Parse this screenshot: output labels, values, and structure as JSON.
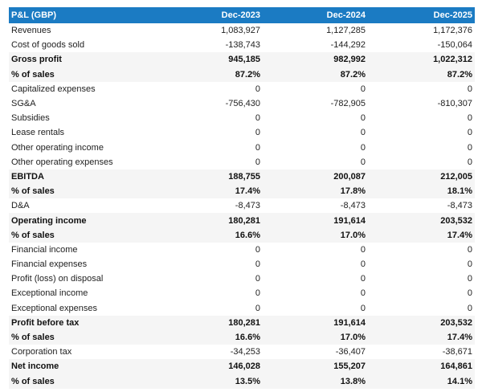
{
  "header": {
    "title": "P&L (GBP)",
    "columns": [
      "Dec-2023",
      "Dec-2024",
      "Dec-2025"
    ]
  },
  "colors": {
    "header_bg": "#1b7bc3",
    "highlight_row_bg": "#f5f5f5"
  },
  "rows": [
    {
      "label": "Revenues",
      "values": [
        "1,083,927",
        "1,127,285",
        "1,172,376"
      ],
      "bold": false
    },
    {
      "label": "Cost of goods sold",
      "values": [
        "-138,743",
        "-144,292",
        "-150,064"
      ],
      "bold": false
    },
    {
      "label": "Gross profit",
      "values": [
        "945,185",
        "982,992",
        "1,022,312"
      ],
      "bold": true
    },
    {
      "label": "% of sales",
      "values": [
        "87.2%",
        "87.2%",
        "87.2%"
      ],
      "bold": true
    },
    {
      "label": "Capitalized expenses",
      "values": [
        "0",
        "0",
        "0"
      ],
      "bold": false
    },
    {
      "label": "SG&A",
      "values": [
        "-756,430",
        "-782,905",
        "-810,307"
      ],
      "bold": false
    },
    {
      "label": "Subsidies",
      "values": [
        "0",
        "0",
        "0"
      ],
      "bold": false
    },
    {
      "label": "Lease rentals",
      "values": [
        "0",
        "0",
        "0"
      ],
      "bold": false
    },
    {
      "label": "Other operating income",
      "values": [
        "0",
        "0",
        "0"
      ],
      "bold": false
    },
    {
      "label": "Other operating expenses",
      "values": [
        "0",
        "0",
        "0"
      ],
      "bold": false
    },
    {
      "label": "EBITDA",
      "values": [
        "188,755",
        "200,087",
        "212,005"
      ],
      "bold": true
    },
    {
      "label": "% of sales",
      "values": [
        "17.4%",
        "17.8%",
        "18.1%"
      ],
      "bold": true
    },
    {
      "label": "D&A",
      "values": [
        "-8,473",
        "-8,473",
        "-8,473"
      ],
      "bold": false
    },
    {
      "label": "Operating income",
      "values": [
        "180,281",
        "191,614",
        "203,532"
      ],
      "bold": true
    },
    {
      "label": "% of sales",
      "values": [
        "16.6%",
        "17.0%",
        "17.4%"
      ],
      "bold": true
    },
    {
      "label": "Financial income",
      "values": [
        "0",
        "0",
        "0"
      ],
      "bold": false
    },
    {
      "label": "Financial expenses",
      "values": [
        "0",
        "0",
        "0"
      ],
      "bold": false
    },
    {
      "label": "Profit (loss) on disposal",
      "values": [
        "0",
        "0",
        "0"
      ],
      "bold": false
    },
    {
      "label": "Exceptional income",
      "values": [
        "0",
        "0",
        "0"
      ],
      "bold": false
    },
    {
      "label": "Exceptional expenses",
      "values": [
        "0",
        "0",
        "0"
      ],
      "bold": false
    },
    {
      "label": "Profit before tax",
      "values": [
        "180,281",
        "191,614",
        "203,532"
      ],
      "bold": true
    },
    {
      "label": "% of sales",
      "values": [
        "16.6%",
        "17.0%",
        "17.4%"
      ],
      "bold": true
    },
    {
      "label": "Corporation tax",
      "values": [
        "-34,253",
        "-36,407",
        "-38,671"
      ],
      "bold": false
    },
    {
      "label": "Net income",
      "values": [
        "146,028",
        "155,207",
        "164,861"
      ],
      "bold": true
    },
    {
      "label": "% of sales",
      "values": [
        "13.5%",
        "13.8%",
        "14.1%"
      ],
      "bold": true
    }
  ]
}
